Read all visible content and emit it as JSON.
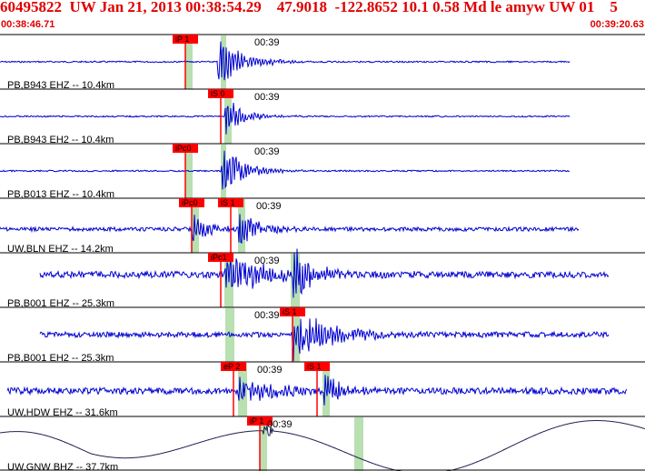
{
  "header": {
    "title": "60495822  UW Jan 21, 2013 00:38:54.29    47.9018  -122.8652 10.1 0.58 Md le amyw UW 01    5",
    "start_time": "00:38:46.71",
    "end_time": "00:39:20.63"
  },
  "time_mark": "00:39",
  "colors": {
    "header_text": "#e00000",
    "trace": "#0000d0",
    "pick_box": "#ff0000",
    "pick_band": "#b8e0b0",
    "separator": "#000000"
  },
  "traces": [
    {
      "label": "PB,B943 EHZ -- 10.4km",
      "picks": [
        {
          "text": "iP 1"
        }
      ]
    },
    {
      "label": "PB,B943 EH2 -- 10.4km",
      "picks": [
        {
          "text": "iS 0"
        }
      ]
    },
    {
      "label": "PB,B013 EHZ -- 10.4km",
      "picks": [
        {
          "text": "iPc0"
        }
      ]
    },
    {
      "label": "UW,BLN EHZ -- 14.2km",
      "picks": [
        {
          "text": "iPc0"
        },
        {
          "text": "iS 1"
        }
      ]
    },
    {
      "label": "PB,B001 EHZ -- 25.3km",
      "picks": [
        {
          "text": "iPc1"
        }
      ]
    },
    {
      "label": "PB,B001 EH2 -- 25.3km",
      "picks": [
        {
          "text": "iS 1"
        }
      ]
    },
    {
      "label": "UW,HDW EHZ -- 31.6km",
      "picks": [
        {
          "text": "eP 2"
        },
        {
          "text": "iS 1"
        }
      ]
    },
    {
      "label": "UW,GNW BHZ -- 37.7km",
      "picks": [
        {
          "text": "iP 1"
        }
      ]
    }
  ]
}
